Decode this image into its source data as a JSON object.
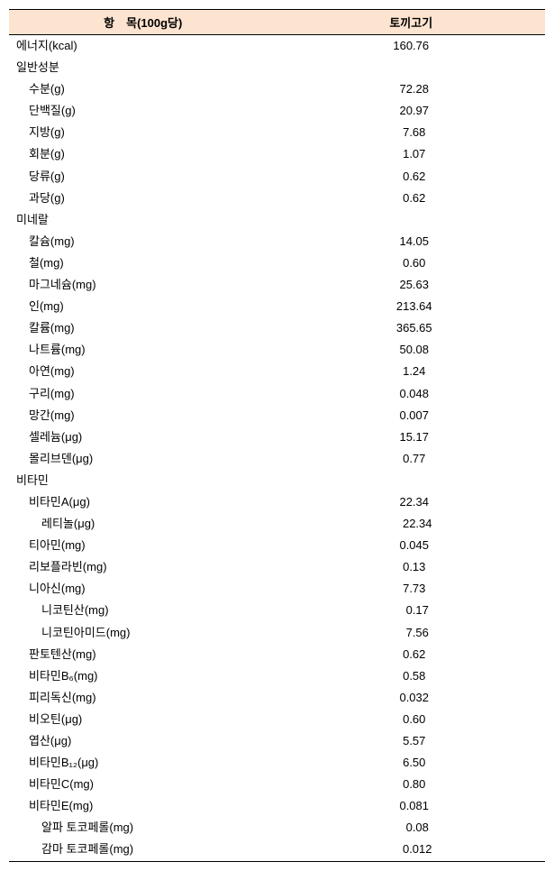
{
  "table": {
    "header": {
      "col1": "항　목(100g당)",
      "col2": "토끼고기"
    },
    "rows": [
      {
        "label": "에너지(kcal)",
        "value": "160.76",
        "indent": 0
      },
      {
        "label": "일반성분",
        "value": "",
        "indent": 0
      },
      {
        "label": "수분(g)",
        "value": "72.28",
        "indent": 1
      },
      {
        "label": "단백질(g)",
        "value": "20.97",
        "indent": 1
      },
      {
        "label": "지방(g)",
        "value": "7.68",
        "indent": 1
      },
      {
        "label": "회분(g)",
        "value": "1.07",
        "indent": 1
      },
      {
        "label": "당류(g)",
        "value": "0.62",
        "indent": 1
      },
      {
        "label": "과당(g)",
        "value": "0.62",
        "indent": 1
      },
      {
        "label": "미네랄",
        "value": "",
        "indent": 0
      },
      {
        "label": "칼슘(mg)",
        "value": "14.05",
        "indent": 1
      },
      {
        "label": "철(mg)",
        "value": "0.60",
        "indent": 1
      },
      {
        "label": "마그네슘(mg)",
        "value": "25.63",
        "indent": 1
      },
      {
        "label": "인(mg)",
        "value": "213.64",
        "indent": 1
      },
      {
        "label": "칼륨(mg)",
        "value": "365.65",
        "indent": 1
      },
      {
        "label": "나트륨(mg)",
        "value": "50.08",
        "indent": 1
      },
      {
        "label": "아연(mg)",
        "value": "1.24",
        "indent": 1
      },
      {
        "label": "구리(mg)",
        "value": "0.048",
        "indent": 1
      },
      {
        "label": "망간(mg)",
        "value": "0.007",
        "indent": 1
      },
      {
        "label": "셀레늄(μg)",
        "value": "15.17",
        "indent": 1
      },
      {
        "label": "몰리브덴(μg)",
        "value": "0.77",
        "indent": 1
      },
      {
        "label": "비타민",
        "value": "",
        "indent": 0
      },
      {
        "label": "비타민A(μg)",
        "value": "22.34",
        "indent": 1
      },
      {
        "label": "레티놀(μg)",
        "value": "22.34",
        "indent": 2
      },
      {
        "label": "티아민(mg)",
        "value": "0.045",
        "indent": 1
      },
      {
        "label": "리보플라빈(mg)",
        "value": "0.13",
        "indent": 1
      },
      {
        "label": "니아신(mg)",
        "value": "7.73",
        "indent": 1
      },
      {
        "label": "니코틴산(mg)",
        "value": "0.17",
        "indent": 2
      },
      {
        "label": "니코틴아미드(mg)",
        "value": "7.56",
        "indent": 2
      },
      {
        "label": "판토텐산(mg)",
        "value": "0.62",
        "indent": 1
      },
      {
        "label": "비타민B₆(mg)",
        "value": "0.58",
        "indent": 1
      },
      {
        "label": "피리독신(mg)",
        "value": "0.032",
        "indent": 1
      },
      {
        "label": "비오틴(μg)",
        "value": "0.60",
        "indent": 1
      },
      {
        "label": "엽산(μg)",
        "value": "5.57",
        "indent": 1
      },
      {
        "label": "비타민B₁₂(μg)",
        "value": "6.50",
        "indent": 1
      },
      {
        "label": "비타민C(mg)",
        "value": "0.80",
        "indent": 1
      },
      {
        "label": "비타민E(mg)",
        "value": "0.081",
        "indent": 1
      },
      {
        "label": "알파 토코페롤(mg)",
        "value": "0.08",
        "indent": 2
      },
      {
        "label": "감마 토코페롤(mg)",
        "value": "0.012",
        "indent": 2
      }
    ]
  }
}
